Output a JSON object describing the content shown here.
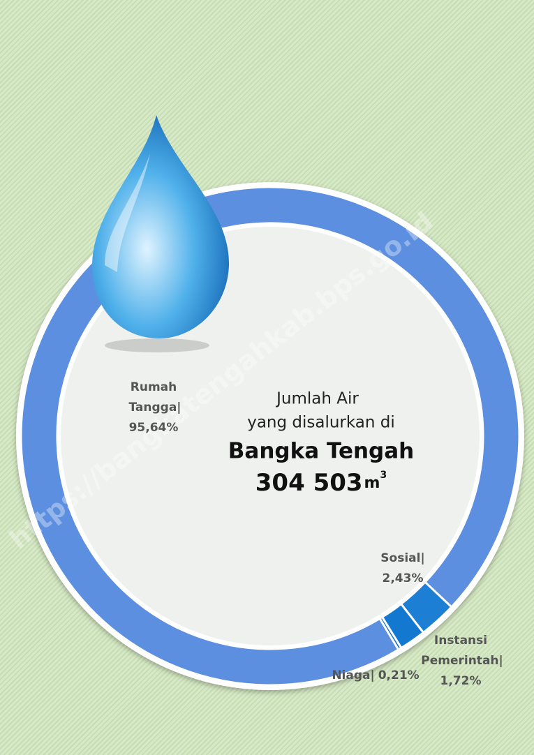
{
  "chart_data": {
    "type": "donut",
    "title_lines": [
      "Jumlah Air",
      "yang disalurkan di"
    ],
    "region": "Bangka Tengah",
    "total": {
      "value": 304503,
      "label": "304 503"
    },
    "unit": "m",
    "unit_exponent": "3",
    "watermark": "https://bangkatengahkab.bps.go.id",
    "categories": [
      "Rumah Tangga|",
      "Sosial|",
      "Instansi Pemerintah|",
      "Niaga|"
    ],
    "values": [
      95.64,
      2.43,
      1.72,
      0.21
    ],
    "value_labels": [
      "95,64%",
      "2,43%",
      "1,72%",
      "0,21%"
    ],
    "colors": [
      "#5d8fe0",
      "#1c7fd3",
      "#1378cf",
      "#0f74cc"
    ]
  }
}
